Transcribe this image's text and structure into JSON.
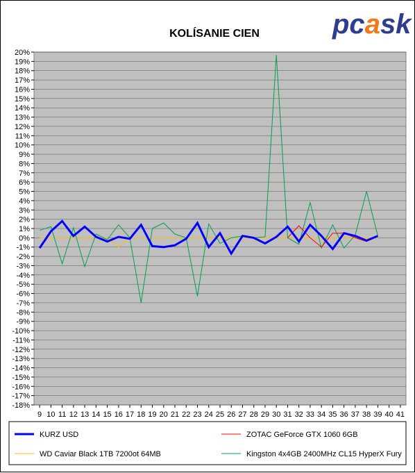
{
  "brand": {
    "name": "pcask",
    "color_main": "#2d3e91",
    "color_flame": "#f07a1a"
  },
  "chart_data": {
    "type": "line",
    "title": "KOLÍSANIE CIEN",
    "xlabel": "",
    "ylabel": "",
    "x": [
      9,
      10,
      11,
      12,
      13,
      14,
      15,
      16,
      17,
      18,
      19,
      20,
      21,
      22,
      23,
      24,
      25,
      26,
      27,
      28,
      29,
      30,
      31,
      32,
      33,
      34,
      35,
      36,
      37,
      38,
      39,
      40,
      41
    ],
    "ylim": [
      -18,
      20
    ],
    "y_unit": "%",
    "grid": true,
    "plot_background": "#c0c0c0",
    "legend_position": "bottom",
    "series": [
      {
        "name": "KURZ USD",
        "color": "#0000ff",
        "width": 3,
        "values": [
          -1.1,
          0.7,
          1.8,
          0.2,
          1.2,
          0.1,
          -0.4,
          0.1,
          -0.1,
          1.4,
          -0.9,
          -1.0,
          -0.8,
          -0.1,
          1.6,
          -1.0,
          0.5,
          -1.7,
          0.2,
          0.0,
          -0.6,
          0.1,
          1.2,
          -0.4,
          1.4,
          0.2,
          -1.2,
          0.5,
          0.2,
          -0.3,
          0.2,
          null,
          null
        ]
      },
      {
        "name": "ZOTAC GeForce GTX 1060 6GB",
        "color": "#ff0000",
        "width": 1,
        "values": [
          null,
          null,
          null,
          null,
          null,
          null,
          null,
          null,
          null,
          null,
          null,
          null,
          null,
          null,
          null,
          null,
          null,
          null,
          null,
          null,
          null,
          null,
          0.0,
          1.3,
          0.0,
          -1.0,
          0.5,
          0.5,
          0.0,
          -0.4,
          0.2,
          null,
          null
        ]
      },
      {
        "name": "WD Caviar Black 1TB 7200ot 64MB",
        "color": "#ffc000",
        "width": 1,
        "values": [
          0.0,
          0.0,
          0.0,
          0.0,
          0.0,
          0.0,
          0.0,
          -1.0,
          0.0,
          0.0,
          0.0,
          0.0,
          0.0,
          0.0,
          0.0,
          0.0,
          0.0,
          0.0,
          0.0,
          0.0,
          0.0,
          0.0,
          0.0,
          0.0,
          0.0,
          0.0,
          0.0,
          0.0,
          0.0,
          0.0,
          0.0,
          null,
          null
        ]
      },
      {
        "name": "Kingston 4x4GB 2400MHz CL15 HyperX Fury",
        "color": "#00a050",
        "width": 1,
        "values": [
          0.8,
          1.2,
          -2.8,
          1.1,
          -3.1,
          0.4,
          -0.2,
          1.4,
          0.0,
          -7.0,
          1.0,
          1.6,
          0.4,
          0.0,
          -6.3,
          1.5,
          -0.6,
          0.0,
          0.2,
          0.0,
          0.1,
          19.7,
          0.0,
          -0.7,
          3.8,
          -1.1,
          1.4,
          -1.1,
          0.3,
          5.0,
          0.2,
          null,
          null
        ]
      }
    ]
  }
}
